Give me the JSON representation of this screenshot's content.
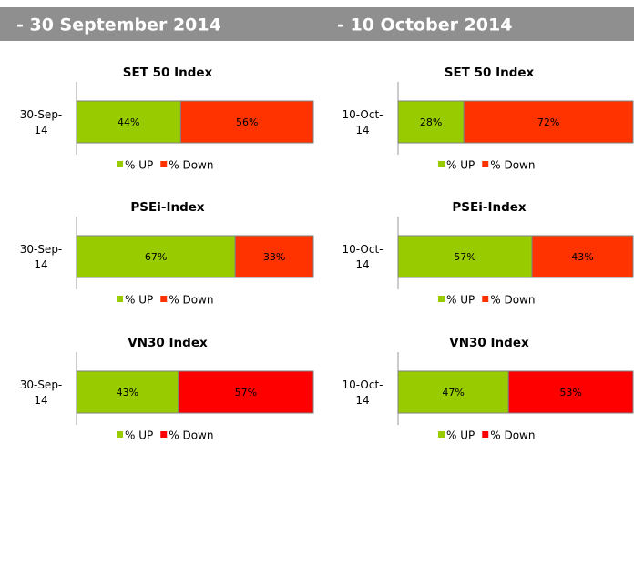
{
  "headers": [
    "- 30 September 2014",
    "- 10 October 2014"
  ],
  "chart_data": [
    {
      "type": "bar",
      "orientation": "horizontal",
      "stacked": true,
      "title": "SET 50 Index",
      "categories": [
        "30-Sep-14"
      ],
      "xlim": [
        0,
        100
      ],
      "series": [
        {
          "name": "% UP",
          "color": "#99cc00",
          "values": [
            44
          ],
          "value_labels": [
            "44%"
          ]
        },
        {
          "name": "% Down",
          "color": "#ff3300",
          "values": [
            56
          ],
          "value_labels": [
            "56%"
          ]
        }
      ]
    },
    {
      "type": "bar",
      "orientation": "horizontal",
      "stacked": true,
      "title": "SET 50 Index",
      "categories": [
        "10-Oct-14"
      ],
      "xlim": [
        0,
        100
      ],
      "series": [
        {
          "name": "% UP",
          "color": "#99cc00",
          "values": [
            28
          ],
          "value_labels": [
            "28%"
          ]
        },
        {
          "name": "% Down",
          "color": "#ff3300",
          "values": [
            72
          ],
          "value_labels": [
            "72%"
          ]
        }
      ]
    },
    {
      "type": "bar",
      "orientation": "horizontal",
      "stacked": true,
      "title": "PSEi-Index",
      "categories": [
        "30-Sep-14"
      ],
      "xlim": [
        0,
        100
      ],
      "series": [
        {
          "name": "% UP",
          "color": "#99cc00",
          "values": [
            67
          ],
          "value_labels": [
            "67%"
          ]
        },
        {
          "name": "% Down",
          "color": "#ff3300",
          "values": [
            33
          ],
          "value_labels": [
            "33%"
          ]
        }
      ]
    },
    {
      "type": "bar",
      "orientation": "horizontal",
      "stacked": true,
      "title": "PSEi-Index",
      "categories": [
        "10-Oct-14"
      ],
      "xlim": [
        0,
        100
      ],
      "series": [
        {
          "name": "% UP",
          "color": "#99cc00",
          "values": [
            57
          ],
          "value_labels": [
            "57%"
          ]
        },
        {
          "name": "% Down",
          "color": "#ff3300",
          "values": [
            43
          ],
          "value_labels": [
            "43%"
          ]
        }
      ]
    },
    {
      "type": "bar",
      "orientation": "horizontal",
      "stacked": true,
      "title": "VN30 Index",
      "categories": [
        "30-Sep-14"
      ],
      "xlim": [
        0,
        100
      ],
      "series": [
        {
          "name": "% UP",
          "color": "#99cc00",
          "values": [
            43
          ],
          "value_labels": [
            "43%"
          ]
        },
        {
          "name": "% Down",
          "color": "#ff0000",
          "values": [
            57
          ],
          "value_labels": [
            "57%"
          ]
        }
      ]
    },
    {
      "type": "bar",
      "orientation": "horizontal",
      "stacked": true,
      "title": "VN30 Index",
      "categories": [
        "10-Oct-14"
      ],
      "xlim": [
        0,
        100
      ],
      "series": [
        {
          "name": "% UP",
          "color": "#99cc00",
          "values": [
            47
          ],
          "value_labels": [
            "47%"
          ]
        },
        {
          "name": "% Down",
          "color": "#ff0000",
          "values": [
            53
          ],
          "value_labels": [
            "53%"
          ]
        }
      ]
    }
  ]
}
